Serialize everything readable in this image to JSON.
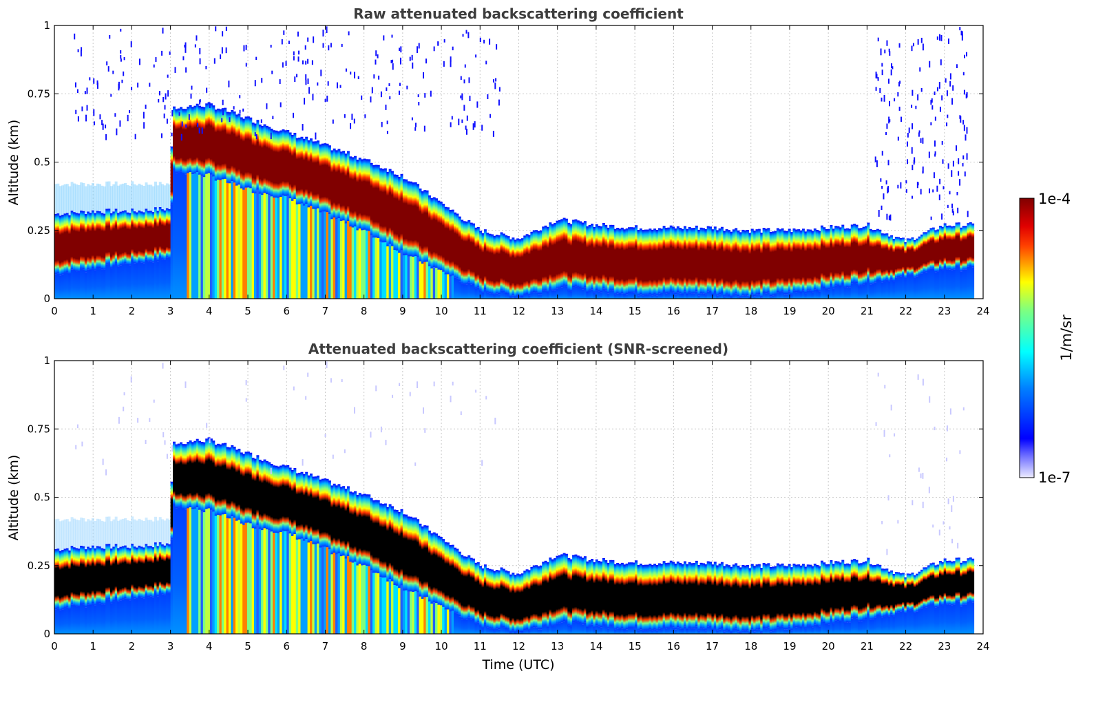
{
  "chart_data": [
    {
      "type": "heatmap",
      "title": "Raw attenuated backscattering coefficient",
      "xlabel": "",
      "ylabel": "Altitude (km)",
      "xlim": [
        0,
        24
      ],
      "ylim": [
        0,
        1
      ],
      "x_ticks": [
        "0",
        "1",
        "2",
        "3",
        "4",
        "5",
        "6",
        "7",
        "8",
        "9",
        "10",
        "11",
        "12",
        "13",
        "14",
        "15",
        "16",
        "17",
        "18",
        "19",
        "20",
        "21",
        "22",
        "23",
        "24"
      ],
      "y_ticks": [
        "0",
        "0.25",
        "0.5",
        "0.75",
        "1"
      ],
      "y_tick_values": [
        0,
        0.25,
        0.5,
        0.75,
        1
      ],
      "data_end_hour": 23.75,
      "saturation_color": "#800000",
      "cloud_layers": [
        {
          "hour": 0.0,
          "base_km": 0.14,
          "top_km": 0.26
        },
        {
          "hour": 1.0,
          "base_km": 0.16,
          "top_km": 0.27
        },
        {
          "hour": 2.0,
          "base_km": 0.18,
          "top_km": 0.27
        },
        {
          "hour": 3.0,
          "base_km": 0.2,
          "top_km": 0.28
        },
        {
          "hour": 3.05,
          "base_km": 0.52,
          "top_km": 0.65
        },
        {
          "hour": 4.0,
          "base_km": 0.5,
          "top_km": 0.66
        },
        {
          "hour": 5.0,
          "base_km": 0.45,
          "top_km": 0.61
        },
        {
          "hour": 6.0,
          "base_km": 0.42,
          "top_km": 0.56
        },
        {
          "hour": 7.0,
          "base_km": 0.36,
          "top_km": 0.51
        },
        {
          "hour": 8.0,
          "base_km": 0.3,
          "top_km": 0.46
        },
        {
          "hour": 9.0,
          "base_km": 0.22,
          "top_km": 0.4
        },
        {
          "hour": 10.0,
          "base_km": 0.15,
          "top_km": 0.3
        },
        {
          "hour": 11.0,
          "base_km": 0.08,
          "top_km": 0.2
        },
        {
          "hour": 12.0,
          "base_km": 0.06,
          "top_km": 0.17
        },
        {
          "hour": 13.0,
          "base_km": 0.09,
          "top_km": 0.24
        },
        {
          "hour": 14.0,
          "base_km": 0.08,
          "top_km": 0.22
        },
        {
          "hour": 15.0,
          "base_km": 0.07,
          "top_km": 0.21
        },
        {
          "hour": 16.0,
          "base_km": 0.07,
          "top_km": 0.21
        },
        {
          "hour": 17.0,
          "base_km": 0.07,
          "top_km": 0.21
        },
        {
          "hour": 18.0,
          "base_km": 0.06,
          "top_km": 0.2
        },
        {
          "hour": 19.0,
          "base_km": 0.07,
          "top_km": 0.2
        },
        {
          "hour": 20.0,
          "base_km": 0.09,
          "top_km": 0.21
        },
        {
          "hour": 21.0,
          "base_km": 0.11,
          "top_km": 0.22
        },
        {
          "hour": 22.0,
          "base_km": 0.13,
          "top_km": 0.16
        },
        {
          "hour": 23.0,
          "base_km": 0.16,
          "top_km": 0.22
        },
        {
          "hour": 23.75,
          "base_km": 0.16,
          "top_km": 0.22
        }
      ]
    },
    {
      "type": "heatmap",
      "title": "Attenuated backscattering coefficient (SNR-screened)",
      "xlabel": "Time (UTC)",
      "ylabel": "Altitude (km)",
      "xlim": [
        0,
        24
      ],
      "ylim": [
        0,
        1
      ],
      "x_ticks": [
        "0",
        "1",
        "2",
        "3",
        "4",
        "5",
        "6",
        "7",
        "8",
        "9",
        "10",
        "11",
        "12",
        "13",
        "14",
        "15",
        "16",
        "17",
        "18",
        "19",
        "20",
        "21",
        "22",
        "23",
        "24"
      ],
      "y_ticks": [
        "0",
        "0.25",
        "0.5",
        "0.75",
        "1"
      ],
      "y_tick_values": [
        0,
        0.25,
        0.5,
        0.75,
        1
      ],
      "data_end_hour": 23.75,
      "saturation_color": "#000000",
      "cloud_layers": "same as raw panel"
    }
  ],
  "colorbar": {
    "label": "1/m/sr",
    "max_label": "1e-4",
    "min_label": "1e-7",
    "colormap": "jet",
    "colors": [
      "#e8e8ff",
      "#0000ff",
      "#00ffff",
      "#ffff00",
      "#ff0000",
      "#800000"
    ]
  }
}
